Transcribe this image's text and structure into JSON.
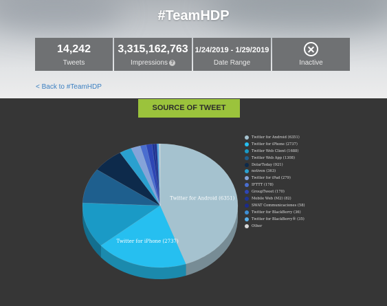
{
  "hero": {
    "title": "#TeamHDP"
  },
  "stats": [
    {
      "value": "14,242",
      "label": "Tweets"
    },
    {
      "value": "3,315,162,763",
      "label": "Impressions"
    },
    {
      "value": "1/24/2019 - 1/29/2019",
      "label": "Date Range"
    },
    {
      "value": "",
      "label": "Inactive"
    }
  ],
  "back_link": "< Back to #TeamHDP",
  "section_tab": "SOURCE OF TWEET",
  "chart_data": {
    "type": "pie",
    "title": "",
    "slices": [
      {
        "name": "Twitter for Android (6351)",
        "value": 6351,
        "color": "#a5c2cf"
      },
      {
        "name": "Twitter for iPhone (2737)",
        "value": 2737,
        "color": "#26bff0"
      },
      {
        "name": "Twitter Web Client (1688)",
        "value": 1688,
        "color": "#1a9ac6"
      },
      {
        "name": "Twitter Web App (1308)",
        "value": 1308,
        "color": "#1e5f8e"
      },
      {
        "name": "DolarToday (921)",
        "value": 921,
        "color": "#0d2a4b"
      },
      {
        "name": "notiven (363)",
        "value": 363,
        "color": "#2aa0cf"
      },
      {
        "name": "Twitter for iPad (279)",
        "value": 279,
        "color": "#84a3d9"
      },
      {
        "name": "IFTTT (178)",
        "value": 178,
        "color": "#4a6ecf"
      },
      {
        "name": "GroupTweet (170)",
        "value": 170,
        "color": "#2d46b5"
      },
      {
        "name": "Mobile Web (M2) (82)",
        "value": 82,
        "color": "#1d3596"
      },
      {
        "name": "SWAT Communicaciones (58)",
        "value": 58,
        "color": "#1b2a8a"
      },
      {
        "name": "Twitter for BlackBerry (36)",
        "value": 36,
        "color": "#3d8fd6"
      },
      {
        "name": "Twitter for BlackBerry® (35)",
        "value": 35,
        "color": "#5ab0ea"
      },
      {
        "name": "Other",
        "value": 30,
        "color": "#d8d8d8"
      }
    ],
    "data_labels": [
      {
        "text": "Twitter for Android (6351)",
        "slice": 0
      },
      {
        "text": "Twitter for iPhone (2737)",
        "slice": 1
      }
    ],
    "legend_position": "right"
  }
}
